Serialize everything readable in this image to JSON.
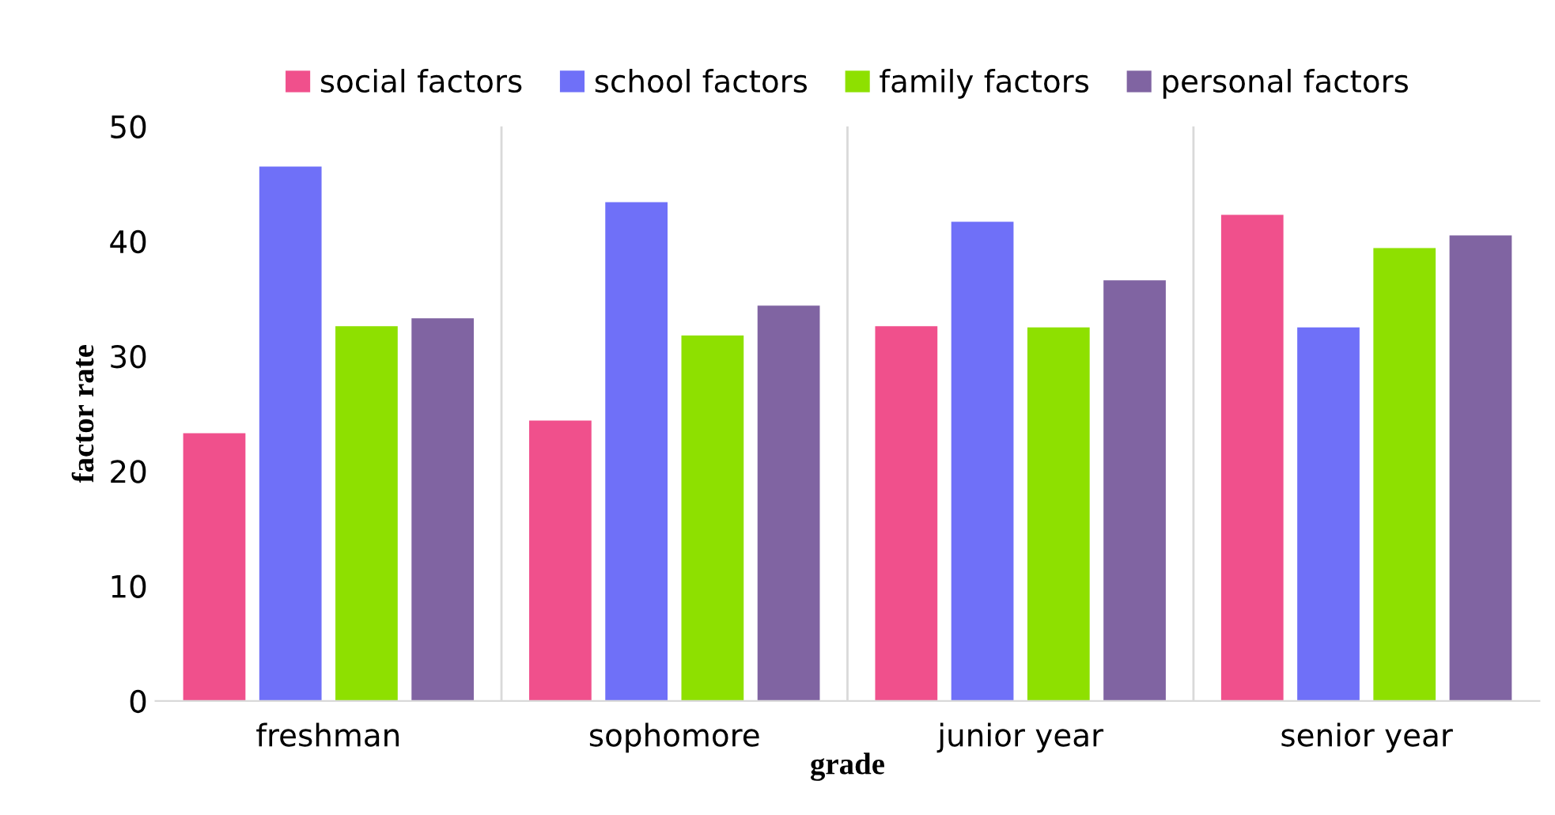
{
  "chart_data": {
    "type": "bar",
    "xlabel": "grade",
    "ylabel": "factor rate",
    "categories": [
      "freshman",
      "sophomore",
      "junior year",
      "senior year"
    ],
    "series": [
      {
        "name": "social factors",
        "color": "#f0508c",
        "values": [
          23.3,
          24.4,
          32.6,
          42.3
        ]
      },
      {
        "name": "school factors",
        "color": "#6f70f8",
        "values": [
          46.5,
          43.4,
          41.7,
          32.5
        ]
      },
      {
        "name": "family factors",
        "color": "#8ee000",
        "values": [
          32.6,
          31.8,
          32.5,
          39.4
        ]
      },
      {
        "name": "personal factors",
        "color": "#8064a2",
        "values": [
          33.3,
          34.4,
          36.6,
          40.5
        ]
      }
    ],
    "ylim": [
      0,
      50
    ],
    "yticks": [
      0,
      10,
      20,
      30,
      40,
      50
    ],
    "grid": "x",
    "legend": "top"
  }
}
